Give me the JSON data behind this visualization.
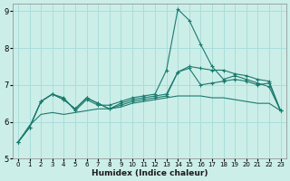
{
  "xlabel": "Humidex (Indice chaleur)",
  "bg_color": "#cceee8",
  "grid_color": "#aaddda",
  "line_color": "#1a7a6e",
  "xlim": [
    -0.5,
    23.5
  ],
  "ylim": [
    5,
    9.2
  ],
  "xticks": [
    0,
    1,
    2,
    3,
    4,
    5,
    6,
    7,
    8,
    9,
    10,
    11,
    12,
    13,
    14,
    15,
    16,
    17,
    18,
    19,
    20,
    21,
    22,
    23
  ],
  "yticks": [
    5,
    6,
    7,
    8,
    9
  ],
  "lines": [
    {
      "x": [
        0,
        1,
        2,
        3,
        4,
        5,
        6,
        7,
        8,
        9,
        10,
        11,
        12,
        13,
        14,
        15,
        16,
        17,
        18,
        19,
        20,
        21,
        22,
        23
      ],
      "y": [
        5.45,
        5.85,
        6.55,
        6.75,
        6.65,
        6.3,
        6.6,
        6.45,
        6.45,
        6.55,
        6.65,
        6.7,
        6.75,
        7.4,
        9.05,
        8.75,
        8.1,
        7.5,
        7.15,
        7.25,
        7.15,
        7.05,
        6.95,
        6.3
      ],
      "marker": true
    },
    {
      "x": [
        0,
        1,
        2,
        3,
        4,
        5,
        6,
        7,
        8,
        9,
        10,
        11,
        12,
        13,
        14,
        15,
        16,
        17,
        18,
        19,
        20,
        21,
        22,
        23
      ],
      "y": [
        5.45,
        5.85,
        6.55,
        6.75,
        6.6,
        6.35,
        6.65,
        6.5,
        6.35,
        6.45,
        6.55,
        6.6,
        6.65,
        6.7,
        7.35,
        7.45,
        7.0,
        7.05,
        7.1,
        7.15,
        7.1,
        7.0,
        7.05,
        6.3
      ],
      "marker": true
    },
    {
      "x": [
        0,
        1,
        2,
        3,
        4,
        5,
        6,
        7,
        8,
        9,
        10,
        11,
        12,
        13,
        14,
        15,
        16,
        17,
        18,
        19,
        20,
        21,
        22,
        23
      ],
      "y": [
        5.45,
        5.85,
        6.55,
        6.75,
        6.6,
        6.35,
        6.65,
        6.5,
        6.35,
        6.5,
        6.6,
        6.65,
        6.7,
        6.75,
        7.35,
        7.5,
        7.45,
        7.4,
        7.4,
        7.3,
        7.25,
        7.15,
        7.1,
        6.3
      ],
      "marker": true
    },
    {
      "x": [
        0,
        1,
        2,
        3,
        4,
        5,
        6,
        7,
        8,
        9,
        10,
        11,
        12,
        13,
        14,
        15,
        16,
        17,
        18,
        19,
        20,
        21,
        22,
        23
      ],
      "y": [
        5.45,
        5.9,
        6.2,
        6.25,
        6.2,
        6.25,
        6.3,
        6.35,
        6.35,
        6.4,
        6.5,
        6.55,
        6.6,
        6.65,
        6.7,
        6.7,
        6.7,
        6.65,
        6.65,
        6.6,
        6.55,
        6.5,
        6.5,
        6.3
      ],
      "marker": false
    }
  ]
}
